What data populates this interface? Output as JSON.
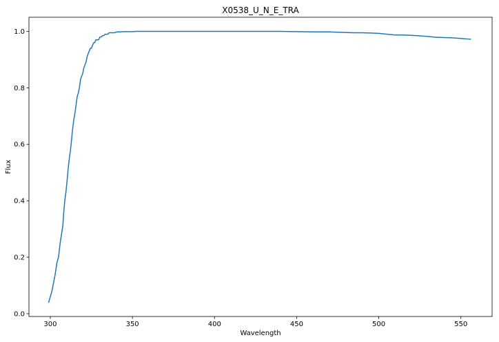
{
  "chart_data": {
    "type": "line",
    "title": "X0538_U_N_E_TRA",
    "xlabel": "Wavelength",
    "ylabel": "Flux",
    "xlim": [
      287,
      569
    ],
    "ylim": [
      -0.01,
      1.05
    ],
    "xticks": [
      300,
      350,
      400,
      450,
      500,
      550
    ],
    "yticks": [
      0.0,
      0.2,
      0.4,
      0.6,
      0.8,
      1.0
    ],
    "xtick_labels": [
      "300",
      "350",
      "400",
      "450",
      "500",
      "550"
    ],
    "ytick_labels": [
      "0.0",
      "0.2",
      "0.4",
      "0.6",
      "0.8",
      "1.0"
    ],
    "grid": false,
    "line_color": "#1f77b4",
    "series": [
      {
        "x": [
          299,
          300,
          301,
          302,
          303,
          304,
          305,
          306,
          306.8,
          307.6,
          308.2,
          308.8,
          309.5,
          310.2,
          311,
          311.6,
          312.3,
          313,
          313.7,
          314.4,
          315,
          315.7,
          316.4,
          317,
          317.7,
          318.4,
          319,
          319.7,
          320.4,
          321,
          321.7,
          322.4,
          323,
          323.7,
          324.4,
          325,
          325.7,
          326.4,
          327,
          327.8,
          328.6,
          329.4,
          330.2,
          331,
          331.8,
          332.6,
          333.4,
          334.2,
          335,
          335.8,
          336.6,
          337.4,
          338.2,
          339,
          340,
          341,
          342,
          343,
          344,
          345,
          346,
          348,
          350,
          352,
          355,
          360,
          380,
          400,
          420,
          440,
          450,
          460,
          470,
          475,
          480,
          485,
          490,
          495,
          500,
          505,
          510,
          515,
          520,
          525,
          530,
          535,
          540,
          545,
          550,
          556
        ],
        "y": [
          0.04,
          0.06,
          0.08,
          0.11,
          0.14,
          0.18,
          0.2,
          0.25,
          0.28,
          0.31,
          0.36,
          0.4,
          0.43,
          0.47,
          0.52,
          0.55,
          0.58,
          0.62,
          0.66,
          0.69,
          0.71,
          0.74,
          0.77,
          0.78,
          0.8,
          0.83,
          0.84,
          0.85,
          0.87,
          0.88,
          0.89,
          0.91,
          0.92,
          0.93,
          0.94,
          0.94,
          0.95,
          0.96,
          0.96,
          0.97,
          0.97,
          0.97,
          0.98,
          0.98,
          0.985,
          0.985,
          0.99,
          0.99,
          0.99,
          0.995,
          0.995,
          0.995,
          0.995,
          0.995,
          0.997,
          0.998,
          0.998,
          0.998,
          0.999,
          0.999,
          0.999,
          0.999,
          0.999,
          1.0,
          1.0,
          1.0,
          1.0,
          1.0,
          1.0,
          1.0,
          0.999,
          0.998,
          0.998,
          0.997,
          0.996,
          0.995,
          0.995,
          0.994,
          0.993,
          0.99,
          0.987,
          0.987,
          0.986,
          0.984,
          0.982,
          0.979,
          0.978,
          0.977,
          0.975,
          0.972
        ]
      }
    ]
  }
}
